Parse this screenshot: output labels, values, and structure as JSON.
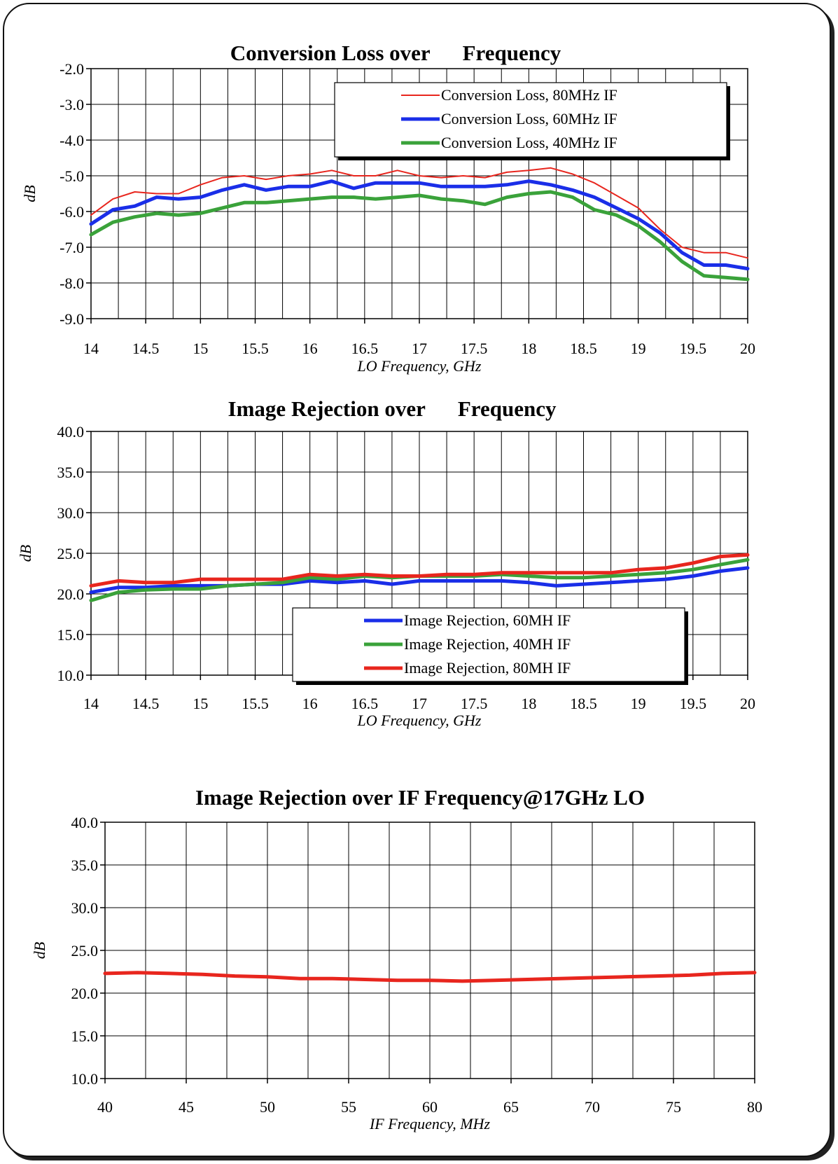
{
  "chart_data": [
    {
      "type": "line",
      "title": "Conversion Loss over      Frequency",
      "xlabel": "LO Frequency, GHz",
      "ylabel": "dB",
      "xlim": [
        14,
        20
      ],
      "ylim": [
        -9.0,
        -2.0
      ],
      "xticks": [
        "14",
        "14.5",
        "15",
        "15.5",
        "16",
        "16.5",
        "17",
        "17.5",
        "18",
        "18.5",
        "19",
        "19.5",
        "20"
      ],
      "yticks": [
        "-2.0",
        "-3.0",
        "-4.0",
        "-5.0",
        "-6.0",
        "-7.0",
        "-8.0",
        "-9.0"
      ],
      "grid": true,
      "legend_position": "top-right",
      "series": [
        {
          "name": "Conversion Loss, 80MHz IF",
          "color": "#e8261e",
          "points": [
            [
              14.0,
              -6.1
            ],
            [
              14.2,
              -5.65
            ],
            [
              14.4,
              -5.45
            ],
            [
              14.6,
              -5.5
            ],
            [
              14.8,
              -5.5
            ],
            [
              15.0,
              -5.25
            ],
            [
              15.2,
              -5.05
            ],
            [
              15.4,
              -5.0
            ],
            [
              15.6,
              -5.1
            ],
            [
              15.8,
              -5.0
            ],
            [
              16.0,
              -4.95
            ],
            [
              16.2,
              -4.85
            ],
            [
              16.4,
              -5.0
            ],
            [
              16.6,
              -5.0
            ],
            [
              16.8,
              -4.85
            ],
            [
              17.0,
              -5.0
            ],
            [
              17.2,
              -5.05
            ],
            [
              17.4,
              -5.0
            ],
            [
              17.6,
              -5.05
            ],
            [
              17.8,
              -4.9
            ],
            [
              18.0,
              -4.85
            ],
            [
              18.2,
              -4.78
            ],
            [
              18.4,
              -4.95
            ],
            [
              18.6,
              -5.2
            ],
            [
              18.8,
              -5.55
            ],
            [
              19.0,
              -5.9
            ],
            [
              19.2,
              -6.5
            ],
            [
              19.4,
              -7.0
            ],
            [
              19.6,
              -7.15
            ],
            [
              19.8,
              -7.15
            ],
            [
              20.0,
              -7.3
            ]
          ]
        },
        {
          "name": "Conversion Loss, 60MHz IF",
          "color": "#1a2ee8",
          "points": [
            [
              14.0,
              -6.35
            ],
            [
              14.2,
              -5.95
            ],
            [
              14.4,
              -5.85
            ],
            [
              14.6,
              -5.6
            ],
            [
              14.8,
              -5.65
            ],
            [
              15.0,
              -5.6
            ],
            [
              15.2,
              -5.4
            ],
            [
              15.4,
              -5.25
            ],
            [
              15.6,
              -5.4
            ],
            [
              15.8,
              -5.3
            ],
            [
              16.0,
              -5.3
            ],
            [
              16.2,
              -5.15
            ],
            [
              16.4,
              -5.35
            ],
            [
              16.6,
              -5.2
            ],
            [
              16.8,
              -5.2
            ],
            [
              17.0,
              -5.2
            ],
            [
              17.2,
              -5.3
            ],
            [
              17.4,
              -5.3
            ],
            [
              17.6,
              -5.3
            ],
            [
              17.8,
              -5.25
            ],
            [
              18.0,
              -5.15
            ],
            [
              18.2,
              -5.25
            ],
            [
              18.4,
              -5.4
            ],
            [
              18.6,
              -5.6
            ],
            [
              18.8,
              -5.9
            ],
            [
              19.0,
              -6.2
            ],
            [
              19.2,
              -6.6
            ],
            [
              19.4,
              -7.15
            ],
            [
              19.6,
              -7.5
            ],
            [
              19.8,
              -7.5
            ],
            [
              20.0,
              -7.6
            ]
          ]
        },
        {
          "name": "Conversion Loss, 40MHz IF",
          "color": "#3aa23a",
          "points": [
            [
              14.0,
              -6.65
            ],
            [
              14.2,
              -6.3
            ],
            [
              14.4,
              -6.15
            ],
            [
              14.6,
              -6.05
            ],
            [
              14.8,
              -6.1
            ],
            [
              15.0,
              -6.05
            ],
            [
              15.2,
              -5.9
            ],
            [
              15.4,
              -5.75
            ],
            [
              15.6,
              -5.75
            ],
            [
              15.8,
              -5.7
            ],
            [
              16.0,
              -5.65
            ],
            [
              16.2,
              -5.6
            ],
            [
              16.4,
              -5.6
            ],
            [
              16.6,
              -5.65
            ],
            [
              16.8,
              -5.6
            ],
            [
              17.0,
              -5.55
            ],
            [
              17.2,
              -5.65
            ],
            [
              17.4,
              -5.7
            ],
            [
              17.6,
              -5.8
            ],
            [
              17.8,
              -5.6
            ],
            [
              18.0,
              -5.5
            ],
            [
              18.2,
              -5.45
            ],
            [
              18.4,
              -5.6
            ],
            [
              18.6,
              -5.95
            ],
            [
              18.8,
              -6.1
            ],
            [
              19.0,
              -6.4
            ],
            [
              19.2,
              -6.85
            ],
            [
              19.4,
              -7.4
            ],
            [
              19.6,
              -7.8
            ],
            [
              19.8,
              -7.85
            ],
            [
              20.0,
              -7.9
            ]
          ]
        }
      ]
    },
    {
      "type": "line",
      "title": "Image Rejection over      Frequency",
      "xlabel": "LO Frequency, GHz",
      "ylabel": "dB",
      "xlim": [
        14,
        20
      ],
      "ylim": [
        10.0,
        40.0
      ],
      "xticks": [
        "14",
        "14.5",
        "15",
        "15.5",
        "16",
        "16.5",
        "17",
        "17.5",
        "18",
        "18.5",
        "19",
        "19.5",
        "20"
      ],
      "yticks": [
        "40.0",
        "35.0",
        "30.0",
        "25.0",
        "20.0",
        "15.0",
        "10.0"
      ],
      "grid": true,
      "legend_position": "bottom-center",
      "series": [
        {
          "name": "Image Rejection, 60MH IF",
          "color": "#1a2ee8",
          "points": [
            [
              14.0,
              20.2
            ],
            [
              14.25,
              20.8
            ],
            [
              14.5,
              20.8
            ],
            [
              14.75,
              21.0
            ],
            [
              15.0,
              21.0
            ],
            [
              15.25,
              21.0
            ],
            [
              15.5,
              21.2
            ],
            [
              15.75,
              21.2
            ],
            [
              16.0,
              21.6
            ],
            [
              16.25,
              21.4
            ],
            [
              16.5,
              21.6
            ],
            [
              16.75,
              21.2
            ],
            [
              17.0,
              21.6
            ],
            [
              17.25,
              21.6
            ],
            [
              17.5,
              21.6
            ],
            [
              17.75,
              21.6
            ],
            [
              18.0,
              21.4
            ],
            [
              18.25,
              21.0
            ],
            [
              18.5,
              21.2
            ],
            [
              18.75,
              21.4
            ],
            [
              19.0,
              21.6
            ],
            [
              19.25,
              21.8
            ],
            [
              19.5,
              22.2
            ],
            [
              19.75,
              22.8
            ],
            [
              20.0,
              23.2
            ]
          ]
        },
        {
          "name": "Image Rejection, 40MH IF",
          "color": "#3aa23a",
          "points": [
            [
              14.0,
              19.2
            ],
            [
              14.25,
              20.2
            ],
            [
              14.5,
              20.5
            ],
            [
              14.75,
              20.6
            ],
            [
              15.0,
              20.6
            ],
            [
              15.25,
              21.0
            ],
            [
              15.5,
              21.2
            ],
            [
              15.75,
              21.4
            ],
            [
              16.0,
              22.0
            ],
            [
              16.25,
              21.8
            ],
            [
              16.5,
              22.2
            ],
            [
              16.75,
              22.0
            ],
            [
              17.0,
              22.2
            ],
            [
              17.25,
              22.2
            ],
            [
              17.5,
              22.2
            ],
            [
              17.75,
              22.4
            ],
            [
              18.0,
              22.2
            ],
            [
              18.25,
              22.0
            ],
            [
              18.5,
              22.0
            ],
            [
              18.75,
              22.2
            ],
            [
              19.0,
              22.4
            ],
            [
              19.25,
              22.6
            ],
            [
              19.5,
              23.0
            ],
            [
              19.75,
              23.6
            ],
            [
              20.0,
              24.2
            ]
          ]
        },
        {
          "name": "Image Rejection, 80MH IF",
          "color": "#e8261e",
          "points": [
            [
              14.0,
              21.0
            ],
            [
              14.25,
              21.6
            ],
            [
              14.5,
              21.4
            ],
            [
              14.75,
              21.4
            ],
            [
              15.0,
              21.8
            ],
            [
              15.25,
              21.8
            ],
            [
              15.5,
              21.8
            ],
            [
              15.75,
              21.8
            ],
            [
              16.0,
              22.4
            ],
            [
              16.25,
              22.2
            ],
            [
              16.5,
              22.4
            ],
            [
              16.75,
              22.2
            ],
            [
              17.0,
              22.2
            ],
            [
              17.25,
              22.4
            ],
            [
              17.5,
              22.4
            ],
            [
              17.75,
              22.6
            ],
            [
              18.0,
              22.6
            ],
            [
              18.25,
              22.6
            ],
            [
              18.5,
              22.6
            ],
            [
              18.75,
              22.6
            ],
            [
              19.0,
              23.0
            ],
            [
              19.25,
              23.2
            ],
            [
              19.5,
              23.8
            ],
            [
              19.75,
              24.6
            ],
            [
              20.0,
              24.8
            ]
          ]
        }
      ]
    },
    {
      "type": "line",
      "title": "Image Rejection over IF Frequency@17GHz LO",
      "xlabel": "IF Frequency, MHz",
      "ylabel": "dB",
      "xlim": [
        40,
        80
      ],
      "ylim": [
        10.0,
        40.0
      ],
      "xticks": [
        "40",
        "45",
        "50",
        "55",
        "60",
        "65",
        "70",
        "75",
        "80"
      ],
      "yticks": [
        "40.0",
        "35.0",
        "30.0",
        "25.0",
        "20.0",
        "15.0",
        "10.0"
      ],
      "grid": true,
      "series": [
        {
          "color": "#e8261e",
          "points": [
            [
              40,
              22.3
            ],
            [
              42,
              22.4
            ],
            [
              44,
              22.3
            ],
            [
              46,
              22.2
            ],
            [
              48,
              22.0
            ],
            [
              50,
              21.9
            ],
            [
              52,
              21.7
            ],
            [
              54,
              21.7
            ],
            [
              56,
              21.6
            ],
            [
              58,
              21.5
            ],
            [
              60,
              21.5
            ],
            [
              62,
              21.4
            ],
            [
              64,
              21.5
            ],
            [
              66,
              21.6
            ],
            [
              68,
              21.7
            ],
            [
              70,
              21.8
            ],
            [
              72,
              21.9
            ],
            [
              74,
              22.0
            ],
            [
              76,
              22.1
            ],
            [
              78,
              22.3
            ],
            [
              80,
              22.4
            ]
          ]
        }
      ]
    }
  ]
}
